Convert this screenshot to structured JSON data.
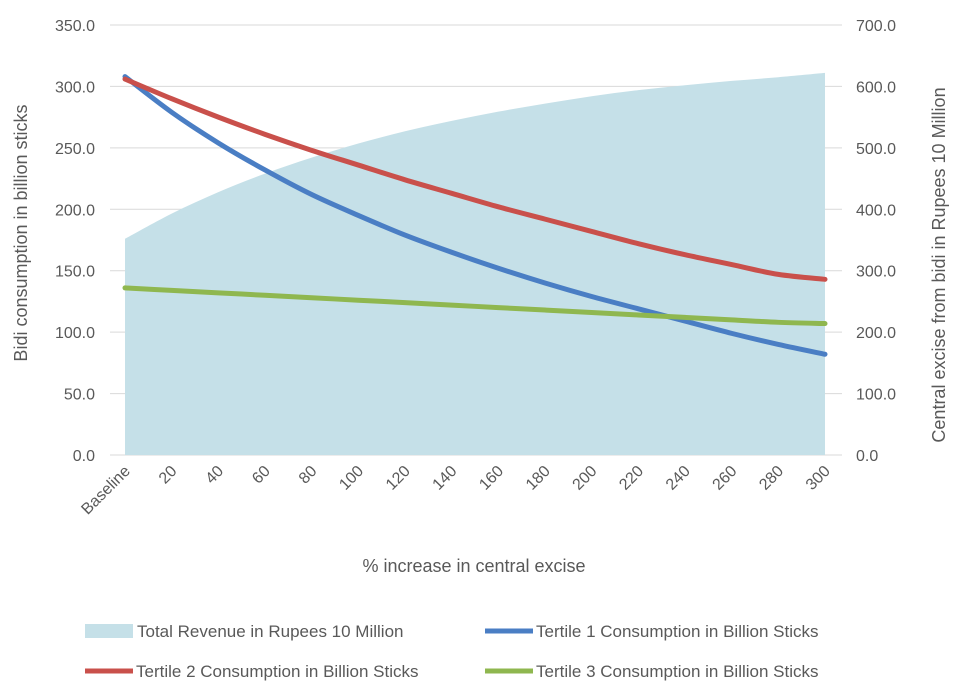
{
  "chart_data": {
    "type": "line",
    "xlabel": "% increase in central excise",
    "ylabel_left": "Bidi consumption in billion sticks",
    "ylabel_right": "Central excise from bidi in Rupees 10 Million",
    "categories": [
      "Baseline",
      "20",
      "40",
      "60",
      "80",
      "100",
      "120",
      "140",
      "160",
      "180",
      "200",
      "220",
      "240",
      "260",
      "280",
      "300"
    ],
    "ylim_left": [
      0,
      350
    ],
    "ylim_right": [
      0,
      700
    ],
    "y_ticks_left": [
      "0.0",
      "50.0",
      "100.0",
      "150.0",
      "200.0",
      "250.0",
      "300.0",
      "350.0"
    ],
    "y_ticks_right": [
      "0.0",
      "100.0",
      "200.0",
      "300.0",
      "400.0",
      "500.0",
      "600.0",
      "700.0"
    ],
    "grid": true,
    "legend_position": "bottom",
    "series": [
      {
        "name": "Total Revenue in Rupees 10 Million",
        "type": "area",
        "axis": "right",
        "color": "#c5e0e8",
        "x": [
          0,
          20,
          40,
          60,
          80,
          100,
          120,
          140,
          160,
          180,
          200,
          220,
          240,
          260,
          280,
          300
        ],
        "values": [
          352,
          393,
          428,
          458,
          484,
          507,
          527,
          544,
          559,
          572,
          584,
          594,
          602,
          609,
          615,
          622
        ]
      },
      {
        "name": "Tertile 1 Consumption in Billion Sticks",
        "type": "line",
        "axis": "left",
        "color": "#4a7ec4",
        "x": [
          0,
          20,
          40,
          60,
          80,
          100,
          120,
          140,
          160,
          180,
          200,
          220,
          240,
          260,
          280,
          300
        ],
        "values": [
          308,
          279,
          254,
          232,
          212,
          195,
          179,
          165,
          152,
          140,
          129,
          119,
          109,
          99,
          90,
          82
        ]
      },
      {
        "name": "Tertile 2 Consumption in Billion Sticks",
        "type": "line",
        "axis": "left",
        "color": "#c9504b",
        "x": [
          0,
          20,
          40,
          60,
          80,
          100,
          120,
          140,
          160,
          180,
          200,
          220,
          240,
          260,
          280,
          300
        ],
        "values": [
          306,
          290,
          275,
          261,
          248,
          236,
          224,
          213,
          202,
          192,
          182,
          172,
          163,
          155,
          147,
          143
        ]
      },
      {
        "name": "Tertile 3 Consumption in Billion Sticks",
        "type": "line",
        "axis": "left",
        "color": "#8fb74f",
        "x": [
          0,
          20,
          40,
          60,
          80,
          100,
          120,
          140,
          160,
          180,
          200,
          220,
          240,
          260,
          280,
          300
        ],
        "values": [
          136,
          134,
          132,
          130,
          128,
          126,
          124,
          122,
          120,
          118,
          116,
          114,
          112,
          110,
          108,
          107
        ]
      }
    ]
  }
}
